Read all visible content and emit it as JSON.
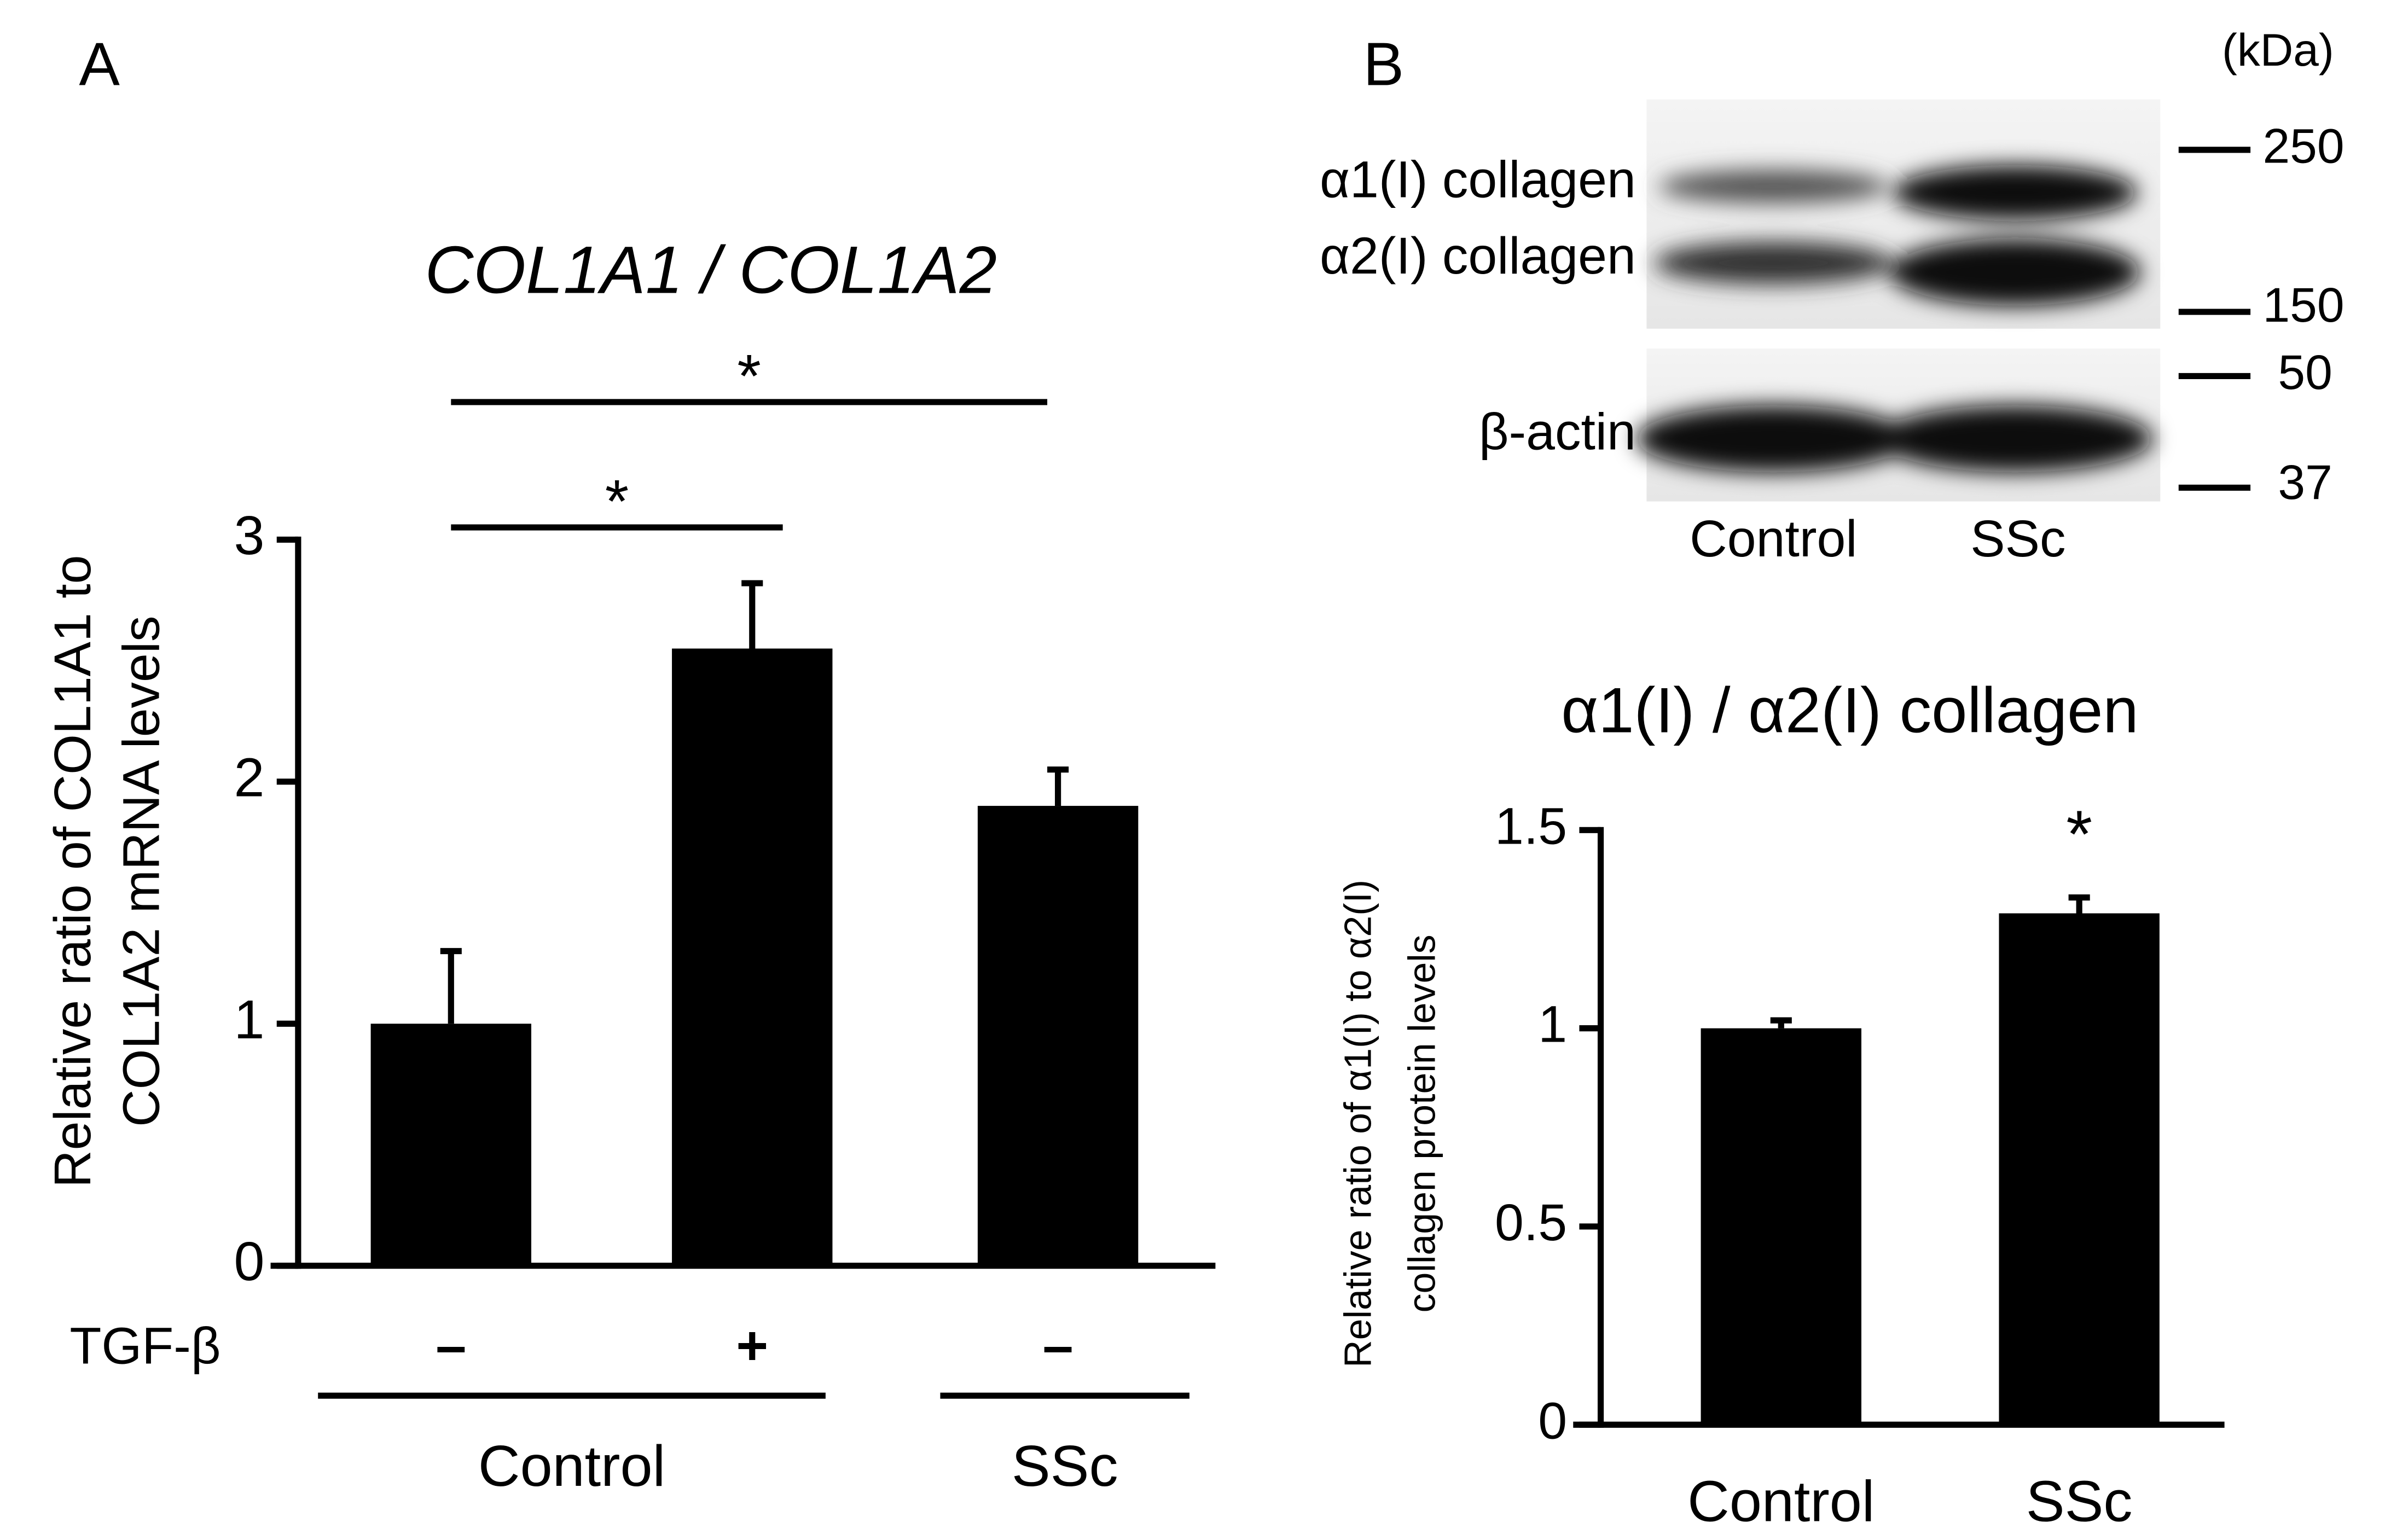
{
  "chart_data": [
    {
      "type": "bar",
      "panel": "A",
      "title": "COL1A1 / COL1A2",
      "y_label": [
        "Relative ratio of COL1A1 to",
        "COL1A2 mRNA levels"
      ],
      "row_label": "TGF-β",
      "categories": [
        "–",
        "+",
        "–"
      ],
      "groups": [
        "Control",
        "SSc"
      ],
      "values": [
        1.0,
        2.55,
        1.9
      ],
      "errors": [
        0.3,
        0.27,
        0.15
      ],
      "color": "#000000",
      "ylim": [
        0,
        3
      ],
      "yticks": [
        0,
        1,
        2,
        3
      ],
      "significance": [
        "*",
        "*"
      ]
    },
    {
      "type": "bar",
      "title": "α1(I) / α2(I) collagen",
      "y_label": [
        "Relative ratio of α1(I) to α2(I)",
        "collagen protein levels"
      ],
      "categories": [
        "Control",
        "SSc"
      ],
      "values": [
        1.0,
        1.29
      ],
      "errors": [
        0.02,
        0.04
      ],
      "color": "#000000",
      "ylim": [
        0,
        1.5
      ],
      "yticks": [
        0,
        0.5,
        1,
        1.5
      ],
      "significance": [
        "*"
      ]
    }
  ],
  "blot": {
    "panel": "B",
    "unit": "(kDa)",
    "markers": [
      "250",
      "150",
      "50",
      "37"
    ],
    "bands": [
      "α1(I) collagen",
      "α2(I) collagen",
      "β-actin"
    ],
    "lanes": [
      "Control",
      "SSc"
    ]
  }
}
